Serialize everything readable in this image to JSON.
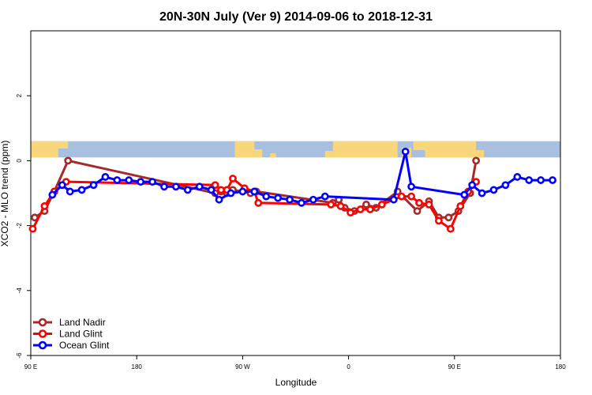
{
  "chart_data": {
    "type": "line",
    "title": "20N-30N July (Ver 9)   2014-09-06 to 2018-12-31",
    "xlabel": "Longitude",
    "ylabel": "XCO2 - MLO trend (ppm)",
    "xlim": [
      -90,
      180
    ],
    "ylim": [
      -6,
      4
    ],
    "x_ticks": [
      {
        "value": -90,
        "label": "90 E"
      },
      {
        "value": -36,
        "label": "180"
      },
      {
        "value": 18,
        "label": "90 W"
      },
      {
        "value": 72,
        "label": "0"
      },
      {
        "value": 126,
        "label": "90 E"
      },
      {
        "value": 180,
        "label": "180"
      }
    ],
    "y_ticks": [
      {
        "value": -6,
        "label": "-6"
      },
      {
        "value": -4,
        "label": "-4"
      },
      {
        "value": -2,
        "label": "-2"
      },
      {
        "value": 0,
        "label": "0"
      },
      {
        "value": 2,
        "label": "2"
      }
    ],
    "map_strip": {
      "y_range": [
        0.1,
        0.6
      ],
      "ocean_color": "#a8bfdf",
      "land_color": "#f8d77a"
    },
    "legend_position": "bottom-left",
    "series": [
      {
        "name": "Land Nadir",
        "color": "#a52a2a",
        "points": [
          [
            -88,
            -1.75
          ],
          [
            -83,
            -1.55
          ],
          [
            -78,
            -0.95
          ],
          [
            -71,
            0.0
          ],
          [
            4,
            -1.0
          ],
          [
            7,
            -0.95
          ],
          [
            10,
            -1.0
          ],
          [
            13,
            -0.9
          ],
          [
            22,
            -1.0
          ],
          [
            25,
            -0.95
          ],
          [
            64,
            -1.3
          ],
          [
            67,
            -1.2
          ],
          [
            70,
            -1.45
          ],
          [
            75,
            -1.55
          ],
          [
            81,
            -1.35
          ],
          [
            86,
            -1.45
          ],
          [
            97,
            -0.95
          ],
          [
            107,
            -1.55
          ],
          [
            113,
            -1.25
          ],
          [
            118,
            -1.75
          ],
          [
            123,
            -1.75
          ],
          [
            128,
            -1.55
          ],
          [
            134,
            -1.0
          ],
          [
            137,
            0.0
          ]
        ]
      },
      {
        "name": "Land Glint",
        "color": "#ff0000",
        "points": [
          [
            -89,
            -2.1
          ],
          [
            -83,
            -1.4
          ],
          [
            -78,
            -0.95
          ],
          [
            -72,
            -0.65
          ],
          [
            4,
            -0.75
          ],
          [
            7,
            -0.9
          ],
          [
            10,
            -0.9
          ],
          [
            13,
            -0.55
          ],
          [
            19,
            -0.85
          ],
          [
            24,
            -0.95
          ],
          [
            26,
            -1.3
          ],
          [
            63,
            -1.35
          ],
          [
            68,
            -1.4
          ],
          [
            73,
            -1.6
          ],
          [
            78,
            -1.5
          ],
          [
            83,
            -1.5
          ],
          [
            89,
            -1.35
          ],
          [
            99,
            -1.1
          ],
          [
            104,
            -1.1
          ],
          [
            108,
            -1.3
          ],
          [
            113,
            -1.35
          ],
          [
            118,
            -1.85
          ],
          [
            124,
            -2.1
          ],
          [
            129,
            -1.4
          ],
          [
            133,
            -0.95
          ],
          [
            137,
            -0.65
          ]
        ]
      },
      {
        "name": "Ocean Glint",
        "color": "#0000ff",
        "points": [
          [
            -79,
            -1.05
          ],
          [
            -74,
            -0.75
          ],
          [
            -70,
            -0.95
          ],
          [
            -64,
            -0.9
          ],
          [
            -58,
            -0.75
          ],
          [
            -52,
            -0.5
          ],
          [
            -46,
            -0.6
          ],
          [
            -40,
            -0.6
          ],
          [
            -34,
            -0.65
          ],
          [
            -28,
            -0.65
          ],
          [
            -22,
            -0.8
          ],
          [
            -16,
            -0.8
          ],
          [
            -10,
            -0.9
          ],
          [
            -4,
            -0.8
          ],
          [
            2,
            -0.9
          ],
          [
            6,
            -1.2
          ],
          [
            12,
            -1.0
          ],
          [
            18,
            -0.95
          ],
          [
            24,
            -0.95
          ],
          [
            30,
            -1.1
          ],
          [
            36,
            -1.15
          ],
          [
            42,
            -1.2
          ],
          [
            48,
            -1.3
          ],
          [
            54,
            -1.2
          ],
          [
            60,
            -1.1
          ],
          [
            95,
            -1.2
          ],
          [
            101,
            0.28
          ],
          [
            104,
            -0.8
          ],
          [
            131,
            -1.05
          ],
          [
            135,
            -0.75
          ],
          [
            140,
            -1.0
          ],
          [
            146,
            -0.9
          ],
          [
            152,
            -0.75
          ],
          [
            158,
            -0.5
          ],
          [
            164,
            -0.6
          ],
          [
            170,
            -0.6
          ],
          [
            176,
            -0.6
          ]
        ]
      }
    ]
  }
}
